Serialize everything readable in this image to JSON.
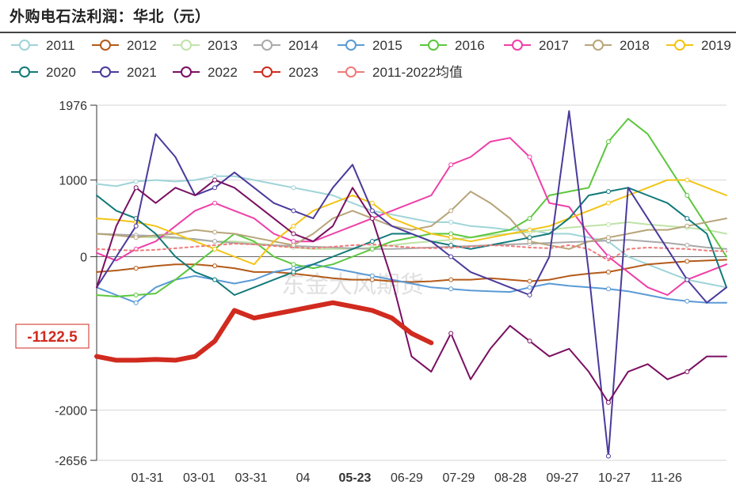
{
  "title": "外购电石法利润：华北（元）",
  "watermark": "东金大风期货",
  "chart_data": {
    "type": "line",
    "title": "外购电石法利润：华北（元）",
    "ylim": [
      -2656,
      1976
    ],
    "yticks": [
      1976,
      1000,
      0,
      -2000,
      -2656
    ],
    "xticks": [
      "01-31",
      "03-01",
      "03-31",
      "04",
      "05-23",
      "06-29",
      "07-29",
      "08-28",
      "09-27",
      "10-27",
      "11-26"
    ],
    "highlight_x": "05-23",
    "current_label": "-1122.5",
    "legend": [
      "2011",
      "2012",
      "2013",
      "2014",
      "2015",
      "2016",
      "2017",
      "2018",
      "2019",
      "2020",
      "2021",
      "2022",
      "2023",
      "2011-2022均值"
    ],
    "series": [
      {
        "name": "2011",
        "color": "#9fd4d8",
        "values": [
          950,
          920,
          980,
          1000,
          980,
          1000,
          1050,
          1050,
          1000,
          950,
          900,
          850,
          800,
          700,
          600,
          550,
          500,
          450,
          450,
          400,
          380,
          350,
          350,
          300,
          300,
          250,
          200,
          0,
          -100,
          -200,
          -300,
          -350,
          -400
        ]
      },
      {
        "name": "2012",
        "color": "#b45a19",
        "values": [
          -200,
          -180,
          -150,
          -120,
          -100,
          -100,
          -120,
          -150,
          -200,
          -200,
          -220,
          -250,
          -280,
          -300,
          -300,
          -320,
          -330,
          -320,
          -300,
          -300,
          -280,
          -300,
          -320,
          -300,
          -250,
          -220,
          -200,
          -150,
          -100,
          -80,
          -60,
          -50,
          -40
        ]
      },
      {
        "name": "2013",
        "color": "#bfe3a8",
        "values": [
          300,
          280,
          260,
          250,
          240,
          220,
          200,
          200,
          180,
          150,
          120,
          100,
          100,
          100,
          120,
          150,
          180,
          200,
          220,
          250,
          280,
          300,
          320,
          350,
          380,
          400,
          420,
          450,
          420,
          400,
          380,
          350,
          300
        ]
      },
      {
        "name": "2014",
        "color": "#a9a9a9",
        "values": [
          300,
          290,
          280,
          270,
          250,
          230,
          200,
          180,
          160,
          150,
          140,
          130,
          120,
          110,
          100,
          100,
          110,
          120,
          130,
          140,
          150,
          160,
          170,
          180,
          190,
          200,
          210,
          220,
          200,
          180,
          150,
          120,
          100
        ]
      },
      {
        "name": "2015",
        "color": "#5a9ad6",
        "values": [
          -400,
          -500,
          -600,
          -400,
          -300,
          -250,
          -300,
          -350,
          -300,
          -200,
          -150,
          -100,
          -150,
          -200,
          -250,
          -300,
          -350,
          -400,
          -420,
          -440,
          -450,
          -460,
          -400,
          -350,
          -380,
          -400,
          -420,
          -450,
          -500,
          -550,
          -580,
          -600,
          -600
        ]
      },
      {
        "name": "2016",
        "color": "#5cc73e",
        "values": [
          -500,
          -520,
          -500,
          -480,
          -300,
          -100,
          100,
          300,
          200,
          0,
          -100,
          -150,
          -100,
          0,
          100,
          200,
          250,
          300,
          300,
          250,
          300,
          350,
          500,
          800,
          850,
          900,
          1500,
          1800,
          1600,
          1200,
          800,
          400,
          0
        ]
      },
      {
        "name": "2017",
        "color": "#ef3fa8",
        "values": [
          50,
          -50,
          100,
          200,
          400,
          600,
          700,
          600,
          500,
          300,
          200,
          200,
          300,
          400,
          500,
          600,
          700,
          800,
          1200,
          1300,
          1500,
          1550,
          1300,
          700,
          650,
          300,
          0,
          -200,
          -400,
          -500,
          -300,
          -200,
          -100
        ]
      },
      {
        "name": "2018",
        "color": "#b7a57a",
        "values": [
          300,
          280,
          250,
          280,
          300,
          350,
          320,
          300,
          250,
          200,
          150,
          300,
          500,
          600,
          500,
          400,
          350,
          400,
          600,
          850,
          700,
          500,
          200,
          150,
          100,
          200,
          250,
          300,
          350,
          350,
          400,
          450,
          500
        ]
      },
      {
        "name": "2019",
        "color": "#f3c416",
        "values": [
          500,
          480,
          450,
          400,
          300,
          200,
          100,
          0,
          -100,
          200,
          400,
          600,
          700,
          800,
          700,
          500,
          400,
          300,
          250,
          200,
          250,
          300,
          350,
          400,
          500,
          600,
          700,
          800,
          900,
          1000,
          1000,
          900,
          800
        ]
      },
      {
        "name": "2020",
        "color": "#13797a",
        "values": [
          800,
          600,
          500,
          300,
          0,
          -200,
          -300,
          -500,
          -400,
          -300,
          -200,
          -100,
          0,
          100,
          200,
          300,
          300,
          200,
          150,
          100,
          150,
          200,
          250,
          300,
          500,
          800,
          850,
          900,
          800,
          700,
          500,
          300,
          -400
        ]
      },
      {
        "name": "2021",
        "color": "#4b3a9b",
        "values": [
          -400,
          0,
          400,
          1600,
          1300,
          800,
          900,
          1100,
          900,
          700,
          600,
          500,
          900,
          1200,
          600,
          400,
          300,
          200,
          0,
          -200,
          -300,
          -400,
          -500,
          0,
          1900,
          -200,
          -2600,
          900,
          500,
          100,
          -300,
          -600,
          -400
        ]
      },
      {
        "name": "2022",
        "color": "#7a0f62",
        "values": [
          -400,
          400,
          900,
          700,
          900,
          800,
          1000,
          900,
          700,
          500,
          300,
          200,
          400,
          900,
          500,
          -300,
          -1300,
          -1500,
          -1000,
          -1600,
          -1200,
          -900,
          -1100,
          -1300,
          -1200,
          -1500,
          -1900,
          -1500,
          -1400,
          -1600,
          -1500,
          -1300,
          -1300
        ]
      },
      {
        "name": "2023",
        "color": "#d12a1f",
        "values": [
          -1300,
          -1350,
          -1350,
          -1340,
          -1350,
          -1300,
          -1100,
          -700,
          -800,
          -750,
          -700,
          -650,
          -600,
          -650,
          -700,
          -800,
          -1000,
          -1122.5
        ]
      },
      {
        "name": "2011-2022均值",
        "color": "#f07a7a",
        "dashed": true,
        "values": [
          100,
          90,
          80,
          90,
          110,
          130,
          150,
          170,
          160,
          140,
          120,
          110,
          130,
          150,
          160,
          140,
          120,
          110,
          120,
          130,
          150,
          140,
          120,
          110,
          150,
          100,
          -50,
          100,
          120,
          110,
          100,
          80,
          70
        ]
      }
    ]
  }
}
